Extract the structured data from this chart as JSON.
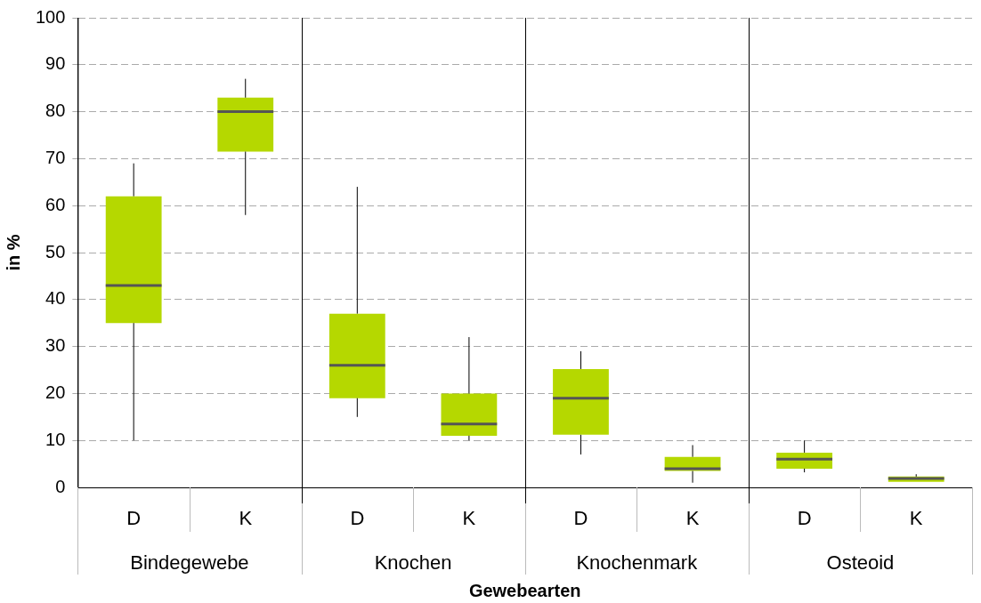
{
  "chart_data": {
    "type": "box",
    "xlabel": "Gewebearten",
    "ylabel": "in %",
    "categories": [
      "D",
      "K",
      "D",
      "K",
      "D",
      "K",
      "D",
      "K"
    ],
    "annotations": [
      "Bindegewebe",
      "Knochen",
      "Knochenmark",
      "Osteoid"
    ],
    "color": "#b5d800",
    "boxes": [
      {
        "low": 10,
        "q1": 35,
        "median": 43,
        "q3": 62,
        "high": 69
      },
      {
        "low": 58,
        "q1": 71.5,
        "median": 80,
        "q3": 83,
        "high": 87
      },
      {
        "low": 15,
        "q1": 19,
        "median": 26,
        "q3": 37,
        "high": 64
      },
      {
        "low": 10,
        "q1": 11,
        "median": 13.5,
        "q3": 20,
        "high": 32
      },
      {
        "low": 7,
        "q1": 11.2,
        "median": 19,
        "q3": 25.2,
        "high": 29
      },
      {
        "low": 1,
        "q1": 3.5,
        "median": 4,
        "q3": 6.5,
        "high": 9
      },
      {
        "low": 3.2,
        "q1": 4,
        "median": 6,
        "q3": 7.4,
        "high": 10
      },
      {
        "low": 1.2,
        "q1": 1.2,
        "median": 1.9,
        "q3": 2.3,
        "high": 2.8
      }
    ],
    "ylim": [
      0,
      100
    ],
    "yticks": [
      0,
      10,
      20,
      30,
      40,
      50,
      60,
      70,
      80,
      90,
      100
    ],
    "grid": "y",
    "legend": false
  }
}
